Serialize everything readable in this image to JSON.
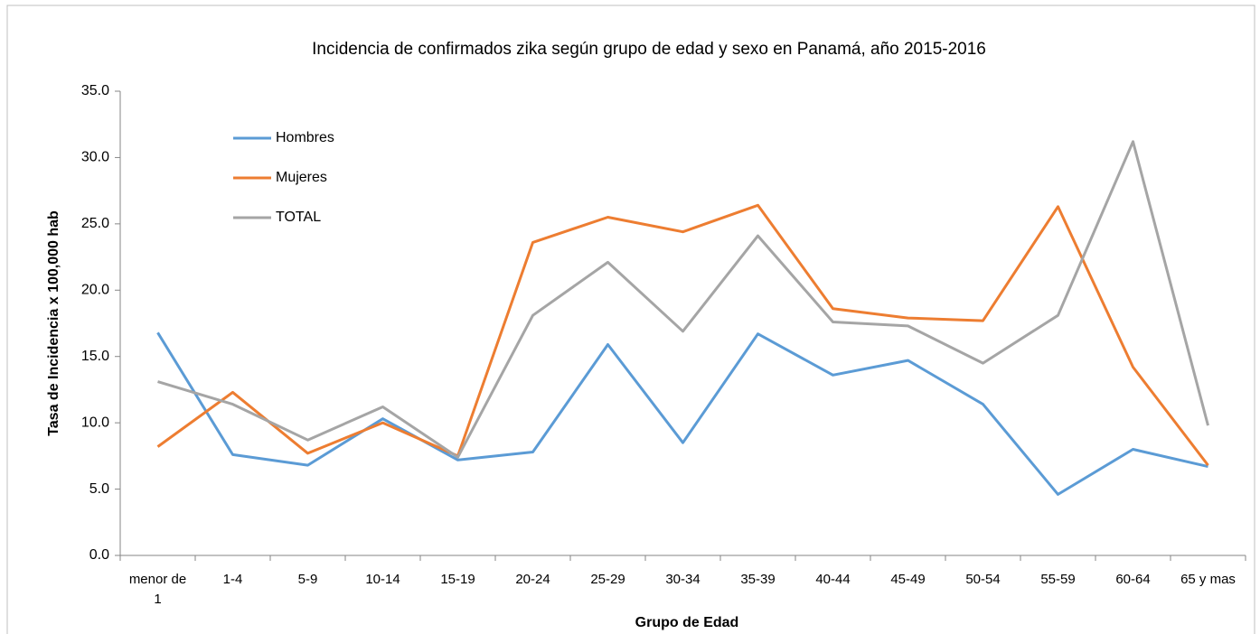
{
  "chart_data": {
    "type": "line",
    "title": "Incidencia de confirmados zika según grupo de edad y sexo en Panamá, año 2015-2016",
    "x_label": "Grupo de Edad",
    "y_label": "Tasa de Incidencia x 100,000 hab",
    "categories": [
      "menor de 1",
      "1-4",
      "5-9",
      "10-14",
      "15-19",
      "20-24",
      "25-29",
      "30-34",
      "35-39",
      "40-44",
      "45-49",
      "50-54",
      "55-59",
      "60-64",
      "65 y mas"
    ],
    "series": [
      {
        "name": "Hombres",
        "color": "#5b9bd5",
        "values": [
          16.8,
          7.6,
          6.8,
          10.3,
          7.2,
          7.8,
          15.9,
          8.5,
          16.7,
          13.6,
          14.7,
          11.4,
          4.6,
          8.0,
          6.7
        ]
      },
      {
        "name": "Mujeres",
        "color": "#ed7d31",
        "values": [
          8.2,
          12.3,
          7.7,
          10.0,
          7.5,
          23.6,
          25.5,
          24.4,
          26.4,
          18.6,
          17.9,
          17.7,
          26.3,
          14.2,
          6.8
        ]
      },
      {
        "name": "TOTAL",
        "color": "#a5a5a5",
        "values": [
          13.1,
          11.4,
          8.7,
          11.2,
          7.4,
          18.1,
          22.1,
          16.9,
          24.1,
          17.6,
          17.3,
          14.5,
          18.1,
          31.2,
          9.8
        ]
      }
    ],
    "ylim": [
      0,
      35
    ],
    "yticks": [
      {
        "value": 0,
        "label": "0.0"
      },
      {
        "value": 5,
        "label": "5.0"
      },
      {
        "value": 10,
        "label": "10.0"
      },
      {
        "value": 15,
        "label": "15.0"
      },
      {
        "value": 20,
        "label": "20.0"
      },
      {
        "value": 25,
        "label": "25.0"
      },
      {
        "value": 30,
        "label": "30.0"
      },
      {
        "value": 35,
        "label": "35.0"
      }
    ],
    "legend": "upper left"
  }
}
